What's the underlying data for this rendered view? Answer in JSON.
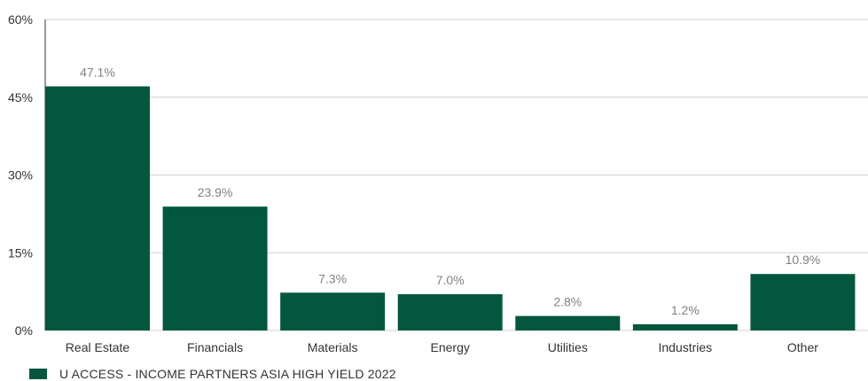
{
  "chart_data": {
    "type": "bar",
    "categories": [
      "Real Estate",
      "Financials",
      "Materials",
      "Energy",
      "Utilities",
      "Industries",
      "Other"
    ],
    "series": [
      {
        "name": "U ACCESS - INCOME PARTNERS ASIA HIGH YIELD 2022",
        "values": [
          47.1,
          23.9,
          7.3,
          7.0,
          2.8,
          1.2,
          10.9
        ],
        "labels": [
          "47.1%",
          "23.9%",
          "7.3%",
          "7.0%",
          "2.8%",
          "1.2%",
          "10.9%"
        ],
        "color": "#04573f"
      }
    ],
    "ylim": [
      0,
      60
    ],
    "yticks": [
      0,
      15,
      30,
      45,
      60
    ],
    "ytick_labels": [
      "0%",
      "15%",
      "30%",
      "45%",
      "60%"
    ],
    "grid": true,
    "legend_position": "bottom-left"
  }
}
